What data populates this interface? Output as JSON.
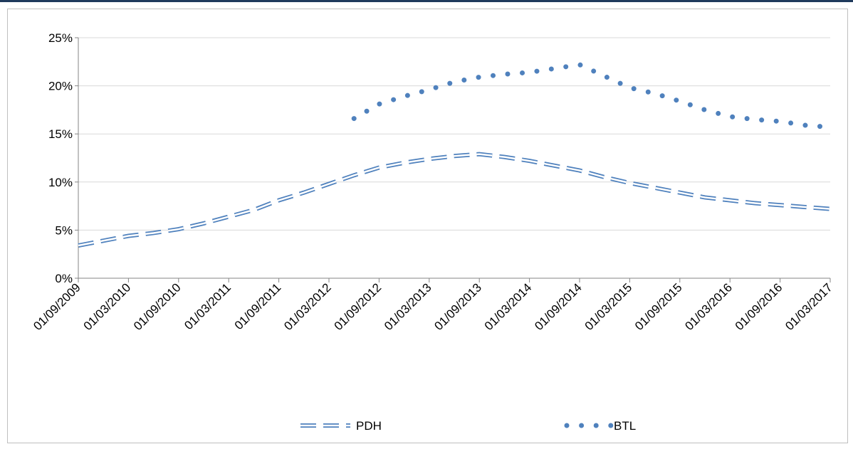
{
  "chart_data": {
    "type": "line",
    "categories": [
      "01/09/2009",
      null,
      "01/03/2010",
      null,
      "01/09/2010",
      null,
      "01/03/2011",
      null,
      "01/09/2011",
      null,
      "01/03/2012",
      null,
      "01/09/2012",
      null,
      "01/03/2013",
      null,
      "01/09/2013",
      null,
      "01/03/2014",
      null,
      "01/09/2014",
      null,
      "01/03/2015",
      null,
      "01/09/2015",
      null,
      "01/03/2016",
      null,
      "01/09/2016",
      null,
      "01/03/2017"
    ],
    "series": [
      {
        "name": "PDH",
        "color": "#4f81bd",
        "style": "dashed",
        "values": [
          3.4,
          3.9,
          4.4,
          4.7,
          5.1,
          5.7,
          6.4,
          7.1,
          8.1,
          8.9,
          9.8,
          10.7,
          11.5,
          12.0,
          12.4,
          12.7,
          12.9,
          12.6,
          12.2,
          11.7,
          11.2,
          10.5,
          9.9,
          9.4,
          8.9,
          8.4,
          8.1,
          7.8,
          7.6,
          7.4,
          7.2
        ]
      },
      {
        "name": "BTL",
        "color": "#4f81bd",
        "style": "dotted",
        "values": [
          null,
          null,
          null,
          null,
          null,
          null,
          null,
          null,
          null,
          null,
          null,
          16.6,
          18.1,
          18.9,
          19.6,
          20.4,
          20.9,
          21.2,
          21.4,
          21.8,
          22.2,
          21.0,
          19.8,
          19.2,
          18.4,
          17.5,
          16.8,
          16.5,
          16.3,
          15.9,
          15.7
        ]
      }
    ],
    "ylim": [
      0,
      25
    ],
    "yticks": [
      {
        "value": 0,
        "label": "0%"
      },
      {
        "value": 5,
        "label": "5%"
      },
      {
        "value": 10,
        "label": "10%"
      },
      {
        "value": 15,
        "label": "15%"
      },
      {
        "value": 20,
        "label": "20%"
      },
      {
        "value": 25,
        "label": "25%"
      }
    ],
    "grid": true,
    "legend": "bottom"
  }
}
